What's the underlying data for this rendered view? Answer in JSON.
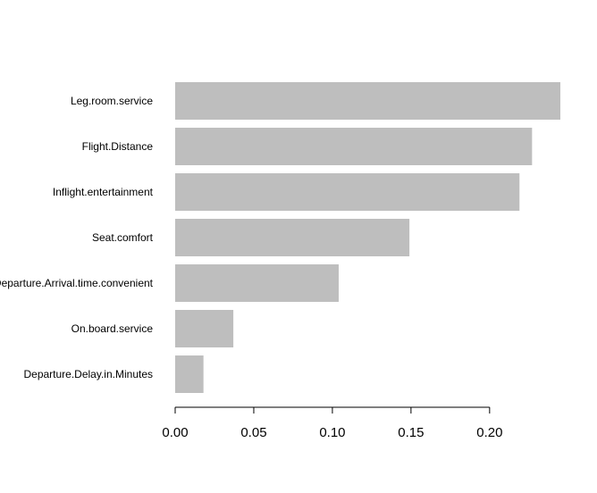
{
  "chart_data": {
    "type": "bar",
    "orientation": "horizontal",
    "categories": [
      "Leg.room.service",
      "Flight.Distance",
      "Inflight.entertainment",
      "Seat.comfort",
      "Departure.Arrival.time.convenient",
      "On.board.service",
      "Departure.Delay.in.Minutes"
    ],
    "values": [
      0.245,
      0.227,
      0.219,
      0.149,
      0.104,
      0.037,
      0.018
    ],
    "xlim": [
      0,
      0.245
    ],
    "xticks": [
      0.0,
      0.05,
      0.1,
      0.15,
      0.2
    ],
    "xtick_labels": [
      "0.00",
      "0.05",
      "0.10",
      "0.15",
      "0.20"
    ],
    "bar_color": "#bebebe",
    "grid": false,
    "legend": "none"
  }
}
